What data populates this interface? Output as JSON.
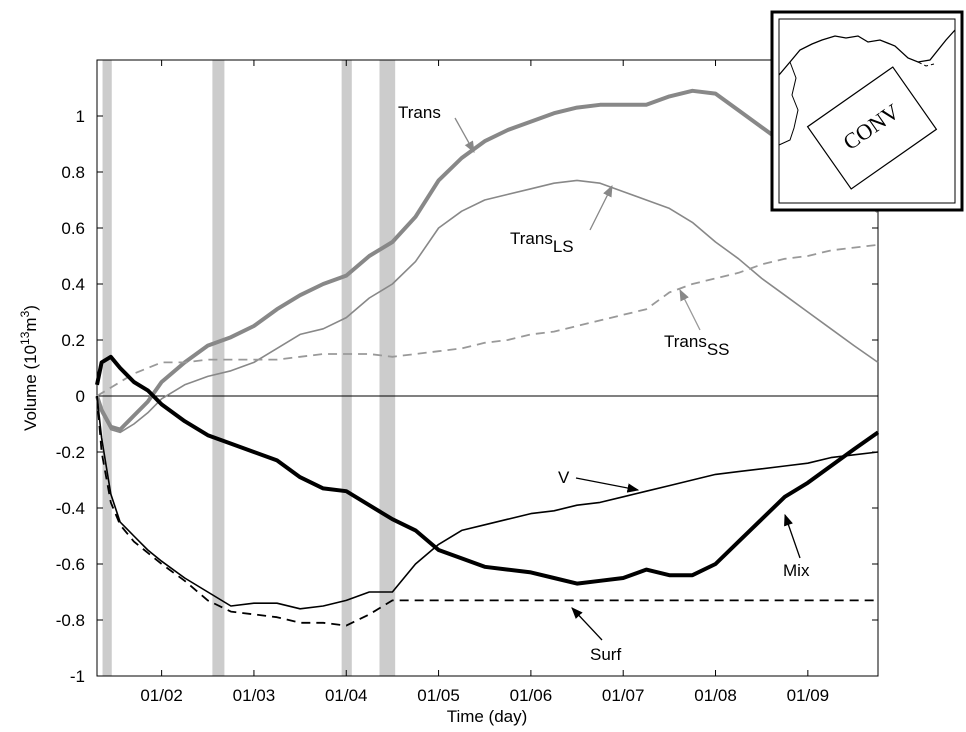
{
  "chart_data": {
    "type": "line",
    "xlabel": "Time (day)",
    "ylabel": {
      "text": "Volume (10",
      "sup1": "13",
      "mid": "m",
      "sup2": "3",
      "end": ")"
    },
    "x": [
      1.3,
      1.35,
      1.45,
      1.55,
      1.7,
      1.85,
      2.0,
      2.25,
      2.5,
      2.75,
      3.0,
      3.25,
      3.5,
      3.75,
      4.0,
      4.25,
      4.5,
      4.75,
      5.0,
      5.25,
      5.5,
      5.75,
      6.0,
      6.25,
      6.5,
      6.75,
      7.0,
      7.25,
      7.5,
      7.75,
      8.0,
      8.25,
      8.5,
      8.75,
      9.0,
      9.25,
      9.5,
      9.76
    ],
    "xlim": [
      1.3,
      9.76
    ],
    "xticks": [
      {
        "value": 2,
        "label": "01/02"
      },
      {
        "value": 3,
        "label": "01/03"
      },
      {
        "value": 4,
        "label": "01/04"
      },
      {
        "value": 5,
        "label": "01/05"
      },
      {
        "value": 6,
        "label": "01/06"
      },
      {
        "value": 7,
        "label": "01/07"
      },
      {
        "value": 8,
        "label": "01/08"
      },
      {
        "value": 9,
        "label": "01/09"
      }
    ],
    "ylim": [
      -1,
      1.2
    ],
    "yticks": [
      -1,
      -0.8,
      -0.6,
      -0.4,
      -0.2,
      0,
      0.2,
      0.4,
      0.6,
      0.8,
      1
    ],
    "zero_line": true,
    "shaded_periods": [
      [
        1.36,
        1.46
      ],
      [
        2.55,
        2.68
      ],
      [
        3.95,
        4.06
      ],
      [
        4.36,
        4.53
      ]
    ],
    "shade_color": "#cccccc",
    "series": [
      {
        "name": "Trans",
        "color": "#888888",
        "style": "thick",
        "values": [
          0,
          -0.05,
          -0.11,
          -0.12,
          -0.07,
          -0.02,
          0.05,
          0.12,
          0.18,
          0.21,
          0.25,
          0.31,
          0.36,
          0.4,
          0.43,
          0.5,
          0.55,
          0.64,
          0.77,
          0.85,
          0.91,
          0.95,
          0.98,
          1.01,
          1.03,
          1.04,
          1.04,
          1.04,
          1.07,
          1.09,
          1.08,
          1.02,
          0.96,
          0.9,
          0.83,
          0.78,
          0.72,
          0.66
        ]
      },
      {
        "name": "Trans",
        "name_sub": "LS",
        "color": "#888888",
        "style": "thin",
        "values": [
          0,
          -0.06,
          -0.12,
          -0.13,
          -0.1,
          -0.06,
          -0.01,
          0.04,
          0.07,
          0.09,
          0.12,
          0.17,
          0.22,
          0.24,
          0.28,
          0.35,
          0.4,
          0.48,
          0.6,
          0.66,
          0.7,
          0.72,
          0.74,
          0.76,
          0.77,
          0.76,
          0.73,
          0.7,
          0.67,
          0.62,
          0.55,
          0.49,
          0.42,
          0.36,
          0.3,
          0.24,
          0.18,
          0.12
        ]
      },
      {
        "name": "Trans",
        "name_sub": "SS",
        "color": "#999999",
        "style": "dashed",
        "values": [
          0,
          0.01,
          0.03,
          0.05,
          0.08,
          0.1,
          0.12,
          0.12,
          0.13,
          0.13,
          0.13,
          0.13,
          0.14,
          0.15,
          0.15,
          0.15,
          0.14,
          0.15,
          0.16,
          0.17,
          0.19,
          0.2,
          0.22,
          0.23,
          0.25,
          0.27,
          0.29,
          0.31,
          0.37,
          0.4,
          0.42,
          0.44,
          0.47,
          0.49,
          0.5,
          0.52,
          0.53,
          0.54
        ]
      },
      {
        "name": "V",
        "color": "#000000",
        "style": "thin",
        "values": [
          0,
          -0.15,
          -0.35,
          -0.45,
          -0.5,
          -0.55,
          -0.59,
          -0.65,
          -0.7,
          -0.75,
          -0.74,
          -0.74,
          -0.76,
          -0.75,
          -0.73,
          -0.7,
          -0.7,
          -0.6,
          -0.53,
          -0.48,
          -0.46,
          -0.44,
          -0.42,
          -0.41,
          -0.39,
          -0.38,
          -0.36,
          -0.34,
          -0.32,
          -0.3,
          -0.28,
          -0.27,
          -0.26,
          -0.25,
          -0.24,
          -0.22,
          -0.21,
          -0.2
        ]
      },
      {
        "name": "Mix",
        "color": "#000000",
        "style": "thick",
        "values": [
          0.04,
          0.12,
          0.14,
          0.1,
          0.05,
          0.02,
          -0.03,
          -0.09,
          -0.14,
          -0.17,
          -0.2,
          -0.23,
          -0.29,
          -0.33,
          -0.34,
          -0.39,
          -0.44,
          -0.48,
          -0.55,
          -0.58,
          -0.61,
          -0.62,
          -0.63,
          -0.65,
          -0.67,
          -0.66,
          -0.65,
          -0.62,
          -0.64,
          -0.64,
          -0.6,
          -0.52,
          -0.44,
          -0.36,
          -0.31,
          -0.25,
          -0.19,
          -0.13
        ]
      },
      {
        "name": "Surf",
        "color": "#000000",
        "style": "dashed",
        "values": [
          0,
          -0.2,
          -0.38,
          -0.46,
          -0.52,
          -0.56,
          -0.6,
          -0.66,
          -0.73,
          -0.77,
          -0.78,
          -0.79,
          -0.81,
          -0.81,
          -0.82,
          -0.78,
          -0.73,
          -0.73,
          -0.73,
          -0.73,
          -0.73,
          -0.73,
          -0.73,
          -0.73,
          -0.73,
          -0.73,
          -0.73,
          -0.73,
          -0.73,
          -0.73,
          -0.73,
          -0.73,
          -0.73,
          -0.73,
          -0.73,
          -0.73,
          -0.73,
          -0.73
        ]
      }
    ],
    "inset": {
      "label": "CONV"
    }
  }
}
